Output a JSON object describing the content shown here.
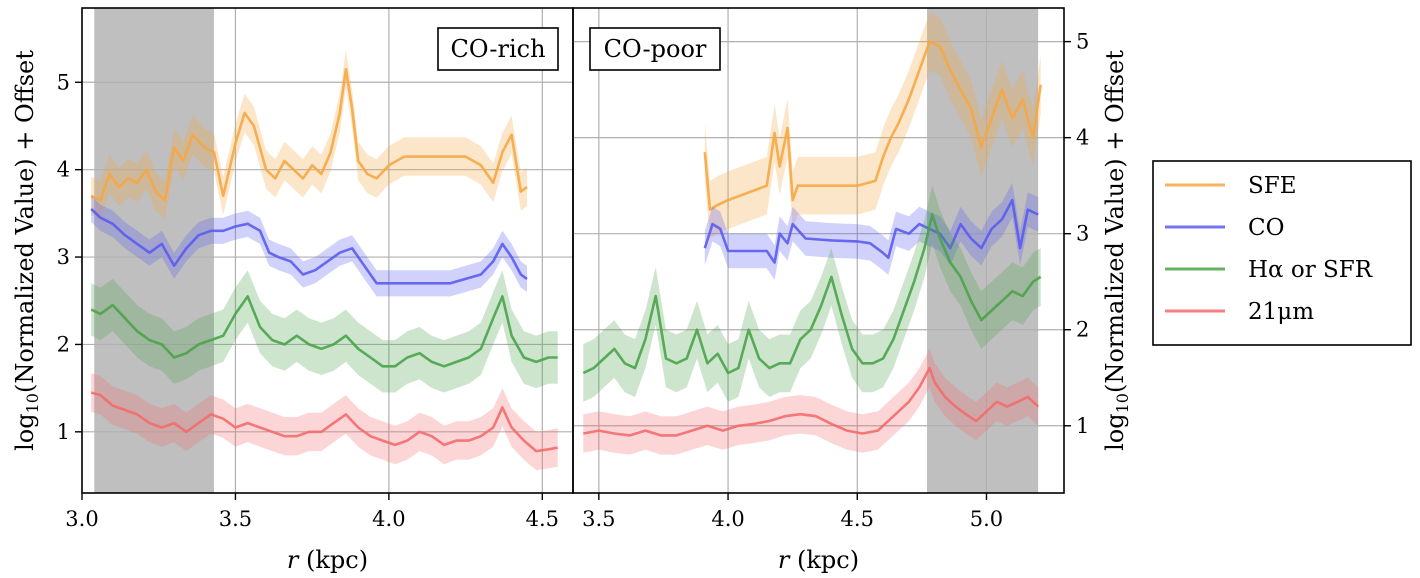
{
  "figure": {
    "legend": {
      "entries": [
        {
          "label": "SFE",
          "color": "#f5a742"
        },
        {
          "label": "CO",
          "color": "#5b5cf0"
        },
        {
          "label": "Hα or SFR",
          "color": "#4aa34a"
        },
        {
          "label": "21μm",
          "color": "#f36b6b"
        }
      ],
      "placement": "right-outside"
    }
  },
  "chart_data": [
    {
      "type": "line",
      "panel": "left",
      "tag": "CO-rich",
      "xlabel_var": "r",
      "xlabel_unit": " (kpc)",
      "ylabel_sub": "log",
      "ylabel_subscript": "10",
      "ylabel_rest": "(Normalized Value) + Offset",
      "xlim": [
        3.0,
        4.6
      ],
      "ylim": [
        0.3,
        5.85
      ],
      "xticks": [
        3.0,
        3.5,
        4.0,
        4.5
      ],
      "xtick_labels": [
        "3.0",
        "3.5",
        "4.0",
        "4.5"
      ],
      "yticks": [
        1,
        2,
        3,
        4,
        5
      ],
      "ytick_labels": [
        "1",
        "2",
        "3",
        "4",
        "5"
      ],
      "grid": true,
      "shaded_regions": [
        [
          3.04,
          3.43
        ]
      ],
      "series": [
        {
          "name": "SFE",
          "x": [
            3.03,
            3.06,
            3.09,
            3.12,
            3.15,
            3.18,
            3.21,
            3.24,
            3.27,
            3.3,
            3.33,
            3.36,
            3.4,
            3.43,
            3.46,
            3.5,
            3.53,
            3.56,
            3.6,
            3.63,
            3.66,
            3.69,
            3.72,
            3.75,
            3.78,
            3.81,
            3.84,
            3.86,
            3.88,
            3.9,
            3.93,
            3.96,
            4.0,
            4.05,
            4.1,
            4.15,
            4.2,
            4.25,
            4.3,
            4.34,
            4.37,
            4.4,
            4.43,
            4.45
          ],
          "y": [
            3.7,
            3.65,
            3.95,
            3.8,
            3.9,
            3.85,
            4.0,
            3.75,
            3.65,
            4.25,
            4.1,
            4.4,
            4.25,
            4.2,
            3.7,
            4.3,
            4.65,
            4.5,
            4.0,
            3.9,
            4.1,
            4.0,
            3.9,
            4.05,
            3.95,
            4.2,
            4.65,
            5.15,
            4.7,
            4.1,
            3.95,
            3.9,
            4.05,
            4.15,
            4.15,
            4.15,
            4.15,
            4.15,
            4.05,
            3.85,
            4.2,
            4.4,
            3.75,
            3.8
          ],
          "band": 0.22
        },
        {
          "name": "CO",
          "x": [
            3.03,
            3.06,
            3.1,
            3.14,
            3.18,
            3.22,
            3.26,
            3.3,
            3.34,
            3.38,
            3.42,
            3.46,
            3.5,
            3.54,
            3.58,
            3.61,
            3.64,
            3.68,
            3.72,
            3.76,
            3.8,
            3.84,
            3.88,
            3.92,
            3.96,
            4.0,
            4.05,
            4.1,
            4.15,
            4.2,
            4.25,
            4.3,
            4.34,
            4.37,
            4.4,
            4.43,
            4.45
          ],
          "y": [
            3.55,
            3.45,
            3.38,
            3.25,
            3.15,
            3.05,
            3.15,
            2.9,
            3.1,
            3.25,
            3.3,
            3.3,
            3.35,
            3.38,
            3.3,
            3.05,
            3.0,
            2.95,
            2.8,
            2.85,
            2.95,
            3.05,
            3.1,
            2.9,
            2.7,
            2.7,
            2.7,
            2.7,
            2.7,
            2.7,
            2.75,
            2.8,
            2.95,
            3.15,
            3.0,
            2.8,
            2.75
          ],
          "band": 0.15
        },
        {
          "name": "Hα or SFR",
          "x": [
            3.03,
            3.06,
            3.1,
            3.14,
            3.18,
            3.22,
            3.26,
            3.3,
            3.34,
            3.38,
            3.42,
            3.46,
            3.5,
            3.54,
            3.58,
            3.62,
            3.66,
            3.7,
            3.74,
            3.78,
            3.82,
            3.86,
            3.9,
            3.94,
            3.98,
            4.02,
            4.06,
            4.1,
            4.14,
            4.18,
            4.22,
            4.26,
            4.3,
            4.34,
            4.37,
            4.4,
            4.44,
            4.48,
            4.52,
            4.55
          ],
          "y": [
            2.4,
            2.35,
            2.45,
            2.3,
            2.15,
            2.05,
            2.0,
            1.85,
            1.9,
            2.0,
            2.05,
            2.1,
            2.35,
            2.55,
            2.2,
            2.05,
            2.0,
            2.1,
            2.0,
            1.95,
            2.0,
            2.1,
            1.95,
            1.85,
            1.75,
            1.75,
            1.85,
            1.9,
            1.8,
            1.75,
            1.8,
            1.85,
            1.95,
            2.3,
            2.55,
            2.1,
            1.85,
            1.8,
            1.85,
            1.85
          ],
          "band": 0.3
        },
        {
          "name": "21μm",
          "x": [
            3.03,
            3.06,
            3.1,
            3.14,
            3.18,
            3.22,
            3.26,
            3.3,
            3.34,
            3.38,
            3.42,
            3.46,
            3.5,
            3.54,
            3.58,
            3.62,
            3.66,
            3.7,
            3.74,
            3.78,
            3.82,
            3.86,
            3.9,
            3.94,
            3.98,
            4.02,
            4.06,
            4.1,
            4.14,
            4.18,
            4.22,
            4.26,
            4.3,
            4.34,
            4.37,
            4.4,
            4.44,
            4.48,
            4.52,
            4.55
          ],
          "y": [
            1.45,
            1.42,
            1.3,
            1.25,
            1.2,
            1.1,
            1.05,
            1.1,
            1.0,
            1.1,
            1.2,
            1.15,
            1.05,
            1.1,
            1.05,
            1.0,
            0.95,
            0.95,
            1.0,
            1.0,
            1.1,
            1.2,
            1.05,
            0.95,
            0.9,
            0.85,
            0.9,
            1.0,
            0.95,
            0.85,
            0.9,
            0.9,
            0.95,
            1.05,
            1.28,
            1.05,
            0.9,
            0.78,
            0.8,
            0.82
          ],
          "band": 0.22
        }
      ]
    },
    {
      "type": "line",
      "panel": "right",
      "tag": "CO-poor",
      "xlabel_var": "r",
      "xlabel_unit": " (kpc)",
      "ylabel_sub": "log",
      "ylabel_subscript": "10",
      "ylabel_rest": "(Normalized Value) + Offset",
      "xlim": [
        3.4,
        5.3
      ],
      "ylim": [
        0.3,
        5.35
      ],
      "xticks": [
        3.5,
        4.0,
        4.5,
        5.0
      ],
      "xtick_labels": [
        "3.5",
        "4.0",
        "4.5",
        "5.0"
      ],
      "yticks": [
        1,
        2,
        3,
        4,
        5
      ],
      "ytick_labels": [
        "1",
        "2",
        "3",
        "4",
        "5"
      ],
      "grid": true,
      "shaded_regions": [
        [
          4.77,
          5.2
        ]
      ],
      "series": [
        {
          "name": "SFE",
          "x": [
            3.91,
            3.93,
            3.96,
            4.0,
            4.05,
            4.1,
            4.15,
            4.18,
            4.2,
            4.23,
            4.25,
            4.27,
            4.3,
            4.4,
            4.5,
            4.57,
            4.6,
            4.63,
            4.66,
            4.7,
            4.74,
            4.78,
            4.82,
            4.86,
            4.9,
            4.94,
            4.98,
            5.02,
            5.06,
            5.1,
            5.14,
            5.18,
            5.21
          ],
          "y": [
            3.85,
            3.25,
            3.3,
            3.35,
            3.4,
            3.45,
            3.5,
            4.05,
            3.7,
            4.1,
            3.35,
            3.5,
            3.5,
            3.5,
            3.5,
            3.55,
            3.8,
            4.0,
            4.15,
            4.4,
            4.7,
            5.0,
            4.95,
            4.7,
            4.5,
            4.3,
            3.9,
            4.2,
            4.5,
            4.2,
            4.4,
            4.0,
            4.55
          ],
          "band": 0.3
        },
        {
          "name": "CO",
          "x": [
            3.91,
            3.94,
            3.97,
            4.0,
            4.05,
            4.1,
            4.15,
            4.18,
            4.2,
            4.23,
            4.25,
            4.3,
            4.4,
            4.5,
            4.55,
            4.6,
            4.62,
            4.65,
            4.7,
            4.74,
            4.78,
            4.82,
            4.86,
            4.9,
            4.94,
            4.98,
            5.02,
            5.06,
            5.1,
            5.13,
            5.16,
            5.2
          ],
          "y": [
            2.85,
            3.1,
            3.05,
            2.82,
            2.82,
            2.82,
            2.82,
            2.7,
            3.0,
            2.9,
            3.1,
            2.95,
            2.93,
            2.92,
            2.9,
            2.8,
            2.75,
            3.05,
            3.0,
            3.1,
            3.05,
            3.0,
            2.85,
            3.1,
            2.95,
            2.85,
            3.05,
            3.15,
            3.35,
            2.85,
            3.25,
            3.2
          ],
          "band": 0.18
        },
        {
          "name": "Hα or SFR",
          "x": [
            3.44,
            3.48,
            3.52,
            3.56,
            3.6,
            3.64,
            3.68,
            3.72,
            3.76,
            3.8,
            3.84,
            3.88,
            3.92,
            3.96,
            4.0,
            4.04,
            4.08,
            4.12,
            4.16,
            4.2,
            4.24,
            4.28,
            4.32,
            4.36,
            4.4,
            4.44,
            4.48,
            4.52,
            4.56,
            4.6,
            4.64,
            4.68,
            4.72,
            4.76,
            4.79,
            4.82,
            4.86,
            4.9,
            4.94,
            4.98,
            5.02,
            5.06,
            5.1,
            5.14,
            5.18,
            5.21
          ],
          "y": [
            1.55,
            1.6,
            1.7,
            1.8,
            1.65,
            1.6,
            1.9,
            2.35,
            1.7,
            1.65,
            1.7,
            2.0,
            1.65,
            1.75,
            1.55,
            1.6,
            2.0,
            1.7,
            1.6,
            1.65,
            1.65,
            1.9,
            2.0,
            2.25,
            2.55,
            2.15,
            1.8,
            1.65,
            1.65,
            1.7,
            1.9,
            2.2,
            2.5,
            2.85,
            3.2,
            2.95,
            2.7,
            2.55,
            2.3,
            2.1,
            2.2,
            2.3,
            2.4,
            2.35,
            2.5,
            2.55
          ],
          "band": 0.3
        },
        {
          "name": "21μm",
          "x": [
            3.44,
            3.5,
            3.56,
            3.62,
            3.68,
            3.74,
            3.8,
            3.86,
            3.92,
            3.98,
            4.04,
            4.1,
            4.16,
            4.22,
            4.28,
            4.34,
            4.4,
            4.46,
            4.52,
            4.58,
            4.64,
            4.7,
            4.74,
            4.78,
            4.8,
            4.84,
            4.88,
            4.92,
            4.96,
            5.0,
            5.04,
            5.08,
            5.12,
            5.16,
            5.2
          ],
          "y": [
            0.92,
            0.95,
            0.92,
            0.9,
            0.95,
            0.9,
            0.9,
            0.95,
            1.0,
            0.95,
            1.0,
            1.02,
            1.05,
            1.1,
            1.12,
            1.1,
            1.02,
            0.95,
            0.92,
            0.95,
            1.1,
            1.25,
            1.4,
            1.6,
            1.45,
            1.3,
            1.2,
            1.12,
            1.05,
            1.15,
            1.25,
            1.2,
            1.25,
            1.3,
            1.2
          ],
          "band": 0.2
        }
      ]
    }
  ]
}
